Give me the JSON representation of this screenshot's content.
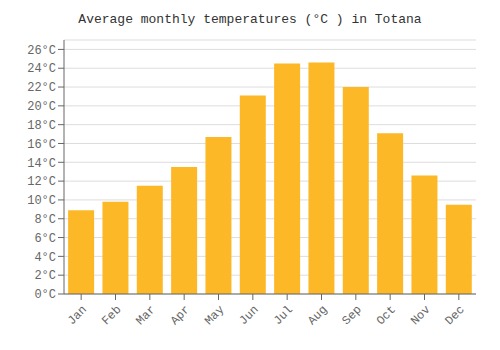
{
  "chart_data": {
    "type": "bar",
    "title": "Average monthly temperatures (°C ) in Totana",
    "categories": [
      "Jan",
      "Feb",
      "Mar",
      "Apr",
      "May",
      "Jun",
      "Jul",
      "Aug",
      "Sep",
      "Oct",
      "Nov",
      "Dec"
    ],
    "values": [
      8.9,
      9.8,
      11.5,
      13.5,
      16.7,
      21.1,
      24.5,
      24.6,
      22.0,
      17.1,
      12.6,
      9.5
    ],
    "color": "#FDB827",
    "ylim": [
      0,
      27
    ],
    "yticks": [
      {
        "value": 0,
        "label": "0°C"
      },
      {
        "value": 2,
        "label": "2°C"
      },
      {
        "value": 4,
        "label": "4°C"
      },
      {
        "value": 6,
        "label": "6°C"
      },
      {
        "value": 8,
        "label": "8°C"
      },
      {
        "value": 10,
        "label": "10°C"
      },
      {
        "value": 12,
        "label": "12°C"
      },
      {
        "value": 14,
        "label": "14°C"
      },
      {
        "value": 16,
        "label": "16°C"
      },
      {
        "value": 18,
        "label": "18°C"
      },
      {
        "value": 20,
        "label": "20°C"
      },
      {
        "value": 22,
        "label": "22°C"
      },
      {
        "value": 24,
        "label": "24°C"
      },
      {
        "value": 26,
        "label": "26°C"
      }
    ],
    "grid": true
  }
}
